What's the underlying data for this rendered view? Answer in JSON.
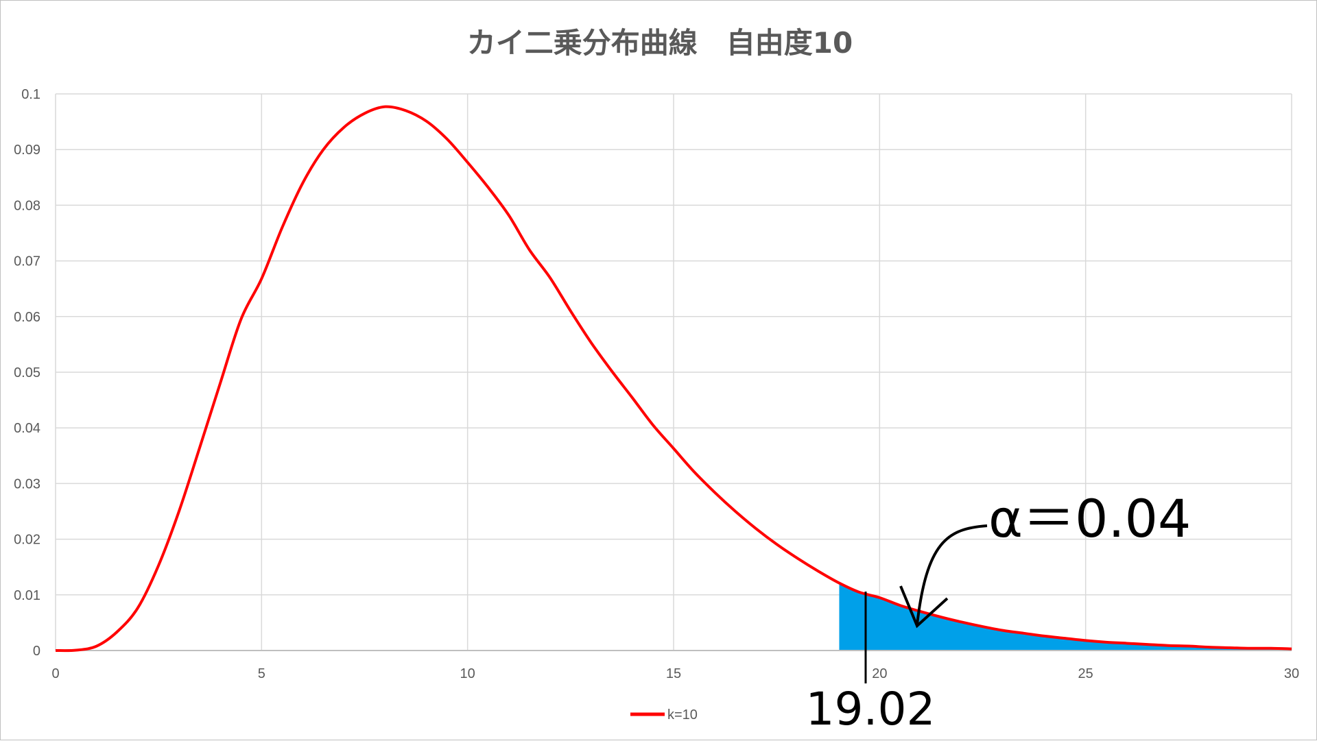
{
  "chart_data": {
    "type": "line",
    "title": "カイ二乗分布曲線　自由度10",
    "xlabel": "",
    "ylabel": "",
    "xlim": [
      0,
      30
    ],
    "ylim": [
      0,
      0.1
    ],
    "x_ticks": [
      0,
      5,
      10,
      15,
      20,
      25,
      30
    ],
    "x_tick_labels": [
      "0",
      "5",
      "10",
      "15",
      "20",
      "25",
      "30"
    ],
    "y_ticks": [
      0,
      0.01,
      0.02,
      0.03,
      0.04,
      0.05,
      0.06,
      0.07,
      0.08,
      0.09,
      0.1
    ],
    "y_tick_labels": [
      "0",
      "0.01",
      "0.02",
      "0.03",
      "0.04",
      "0.05",
      "0.06",
      "0.07",
      "0.08",
      "0.09",
      "0.1"
    ],
    "grid": true,
    "legend_position": "bottom",
    "series": [
      {
        "name": "k=10",
        "color": "#ff0000",
        "x": [
          0,
          0.5,
          1,
          1.5,
          2,
          2.5,
          3,
          3.5,
          4,
          4.5,
          5,
          5.5,
          6,
          6.5,
          7,
          7.5,
          8,
          8.5,
          9,
          9.5,
          10,
          10.5,
          11,
          11.5,
          12,
          12.5,
          13,
          13.5,
          14,
          14.5,
          15,
          15.5,
          16,
          16.5,
          17,
          17.5,
          18,
          18.5,
          19,
          19.5,
          20,
          20.5,
          21,
          21.5,
          22,
          22.5,
          23,
          23.5,
          24,
          24.5,
          25,
          25.5,
          26,
          26.5,
          27,
          27.5,
          28,
          28.5,
          29,
          29.5,
          30
        ],
        "y": [
          0,
          6e-05,
          0.0008,
          0.0034,
          0.0077,
          0.0153,
          0.0251,
          0.0365,
          0.0481,
          0.0595,
          0.0668,
          0.076,
          0.084,
          0.09,
          0.094,
          0.0965,
          0.0977,
          0.097,
          0.0951,
          0.0919,
          0.0877,
          0.0832,
          0.0782,
          0.072,
          0.067,
          0.061,
          0.0553,
          0.0502,
          0.0454,
          0.0405,
          0.0363,
          0.0321,
          0.0284,
          0.025,
          0.0219,
          0.0191,
          0.0166,
          0.0143,
          0.0122,
          0.0105,
          0.0095,
          0.0081,
          0.007,
          0.006,
          0.0051,
          0.0043,
          0.0036,
          0.0031,
          0.0026,
          0.0022,
          0.0018,
          0.0015,
          0.0013,
          0.0011,
          0.0009,
          0.0008,
          0.0006,
          0.0005,
          0.0004,
          0.0004,
          0.0003
        ]
      }
    ],
    "shaded_region": {
      "x_start": 19.02,
      "x_end": 30,
      "color": "#00a0e9"
    },
    "annotations": [
      {
        "id": "alpha",
        "text": "α＝0.04"
      },
      {
        "id": "critical",
        "text": "19.02",
        "x": 19.02
      }
    ]
  }
}
